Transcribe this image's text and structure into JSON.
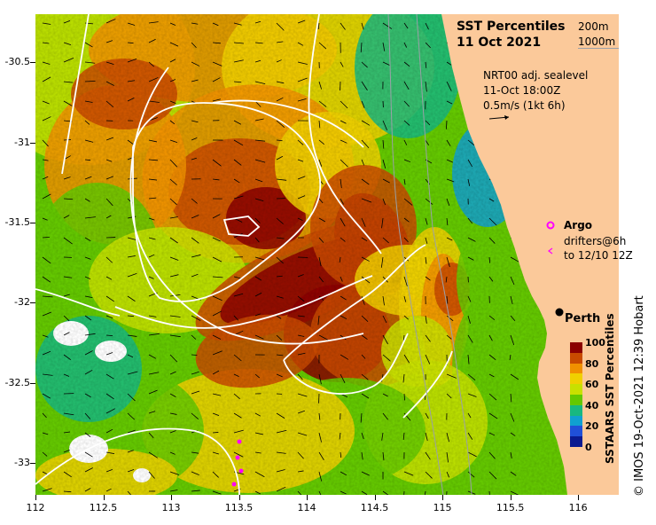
{
  "title": "SST Percentiles",
  "date": "11 Oct 2021",
  "depth_labels": [
    "200m",
    "1000m"
  ],
  "sealevel": {
    "source": "NRT00 adj. sealevel",
    "time": "11-Oct 18:00Z",
    "scale": "0.5m/s (1kt 6h)"
  },
  "legend": {
    "argo": "Argo",
    "drifters_line1": "drifters@6h",
    "drifters_line2": "to 12/10 12Z"
  },
  "city": "Perth",
  "colorbar": {
    "label": "SSTAARS SST Percentiles",
    "ticks": [
      "100",
      "80",
      "60",
      "40",
      "20",
      "0"
    ],
    "colors": [
      "#8b0000",
      "#c84a00",
      "#f09000",
      "#f0d000",
      "#c8e000",
      "#64c800",
      "#18b880",
      "#10a0d0",
      "#2050d8",
      "#0a1a90"
    ]
  },
  "credit": "© IMOS 19-Oct-2021 12:39 Hobart",
  "axes": {
    "x_ticks": [
      "112",
      "112.5",
      "113",
      "113.5",
      "114",
      "114.5",
      "115",
      "115.5",
      "116"
    ],
    "y_ticks": [
      "-30.5",
      "-31",
      "-31.5",
      "-32",
      "-32.5",
      "-33"
    ],
    "x_range": [
      112,
      116.3
    ],
    "y_range": [
      -30.2,
      -33.2
    ]
  },
  "colors": {
    "land": "#fbc99a",
    "contour": "#ffffff",
    "argo": "#ff00ff",
    "drifter": "#ff00ff"
  }
}
